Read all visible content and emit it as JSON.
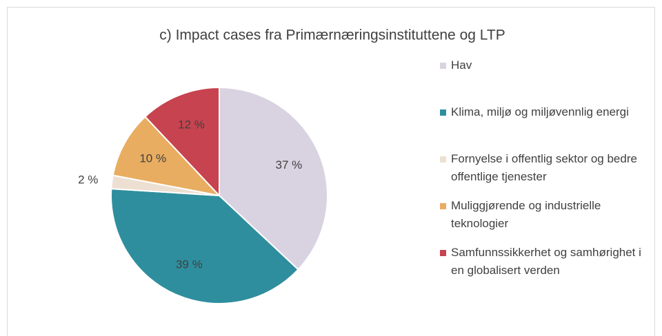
{
  "chart_data": {
    "type": "pie",
    "title": "c) Impact cases fra Primærnæringsinstituttene og LTP",
    "categories": [
      "Hav",
      "Klima, miljø og miljøvennlig energi",
      "Fornyelse i offentlig sektor og bedre offentlige tjenester",
      "Muliggjørende og industrielle teknologier",
      "Samfunnssikkerhet og samhørighet i en globalisert verden"
    ],
    "values": [
      37,
      39,
      2,
      10,
      12
    ],
    "value_labels": [
      "37 %",
      "39 %",
      "2 %",
      "10 %",
      "12 %"
    ],
    "colors": [
      "#d9d3e1",
      "#2e8e9e",
      "#ede0d2",
      "#e9ad61",
      "#c7434f"
    ],
    "legend": "right"
  }
}
